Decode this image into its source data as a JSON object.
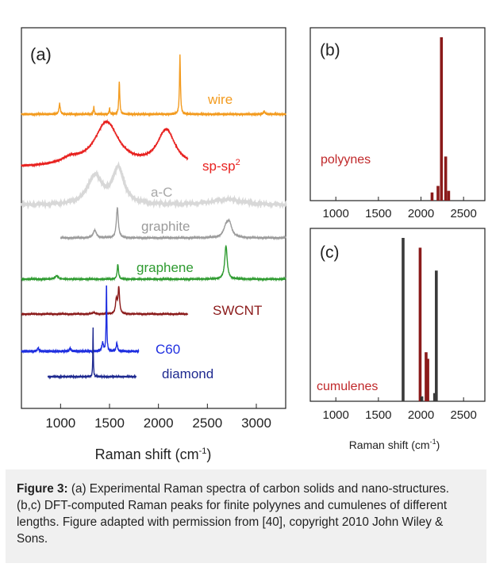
{
  "chart_data": [
    {
      "panel": "(a)",
      "type": "line",
      "xlabel": "Raman shift (cm",
      "xlabel_sup": "-1",
      "xlabel_end": ")",
      "xlim": [
        600,
        3300
      ],
      "xticks": [
        1000,
        1500,
        2000,
        2500,
        3000
      ],
      "series": [
        {
          "name": "wire",
          "color": "#f39b1f",
          "x_range": [
            600,
            3300
          ],
          "baseline": 0,
          "peaks": [
            [
              990,
              0.18,
              8
            ],
            [
              1340,
              0.12,
              5
            ],
            [
              1500,
              0.1,
              5
            ],
            [
              1600,
              0.55,
              6
            ],
            [
              2220,
              1.0,
              6
            ],
            [
              3080,
              0.05,
              10
            ]
          ]
        },
        {
          "name": "sp-sp",
          "name_sup": "2",
          "color": "#e8211f",
          "x_range": [
            600,
            2300
          ],
          "baseline": 0,
          "peaks": [
            [
              1470,
              0.74,
              150
            ],
            [
              2080,
              0.6,
              110
            ],
            [
              1100,
              0.1,
              120
            ]
          ]
        },
        {
          "name": "a-C",
          "color": "#d8d8d8",
          "x_range": [
            600,
            3300
          ],
          "baseline": 0.05,
          "peaks": [
            [
              1350,
              0.6,
              90
            ],
            [
              1590,
              0.75,
              70
            ],
            [
              2700,
              0.12,
              200
            ]
          ]
        },
        {
          "name": "graphite",
          "color": "#9b9b9b",
          "x_range": [
            1000,
            3300
          ],
          "baseline": 0,
          "peaks": [
            [
              1350,
              0.25,
              20
            ],
            [
              1580,
              1.0,
              12
            ],
            [
              2690,
              0.3,
              30
            ],
            [
              2725,
              0.45,
              30
            ]
          ]
        },
        {
          "name": "graphene",
          "color": "#2e9b30",
          "x_range": [
            600,
            3300
          ],
          "baseline": 0,
          "peaks": [
            [
              960,
              0.1,
              20
            ],
            [
              1585,
              0.45,
              8
            ],
            [
              2690,
              1.0,
              15
            ]
          ]
        },
        {
          "name": "SWCNT",
          "color": "#8b1a1a",
          "x_range": [
            600,
            2300
          ],
          "baseline": 0,
          "peaks": [
            [
              1570,
              0.55,
              10
            ],
            [
              1595,
              1.0,
              9
            ],
            [
              1340,
              0.05,
              20
            ]
          ]
        },
        {
          "name": "C60",
          "color": "#1f2fe0",
          "x_range": [
            600,
            1800
          ],
          "baseline": 0,
          "peaks": [
            [
              770,
              0.05,
              8
            ],
            [
              1100,
              0.04,
              10
            ],
            [
              1430,
              0.12,
              10
            ],
            [
              1469,
              1.0,
              4
            ],
            [
              1575,
              0.12,
              8
            ]
          ]
        },
        {
          "name": "diamond",
          "color": "#1f2a90",
          "x_range": [
            870,
            1770
          ],
          "baseline": 0,
          "peaks": [
            [
              1332,
              1.0,
              3
            ]
          ]
        }
      ]
    },
    {
      "panel": "(b)",
      "type": "bar",
      "label": "polyynes",
      "xlim": [
        700,
        2750
      ],
      "xticks": [
        1000,
        1500,
        2000,
        2500
      ],
      "color": "#8b1a1a",
      "x": [
        2130,
        2200,
        2240,
        2290,
        2325
      ],
      "values": [
        0.05,
        0.09,
        1.0,
        0.27,
        0.06
      ]
    },
    {
      "panel": "(c)",
      "type": "bar",
      "label": "cumulenes",
      "xlabel": "Raman shift (cm",
      "xlabel_sup": "-1",
      "xlabel_end": ")",
      "xlim": [
        700,
        2750
      ],
      "xticks": [
        1000,
        1500,
        2000,
        2500
      ],
      "color": "#3a3a3a",
      "x": [
        1790,
        1990,
        2010,
        2060,
        2080,
        2160,
        2180
      ],
      "values": [
        1.0,
        0.94,
        0.03,
        0.3,
        0.26,
        0.05,
        0.8
      ],
      "colors": [
        "#3a3a3a",
        "#8b1a1a",
        "#3a3a3a",
        "#8b1a1a",
        "#8b1a1a",
        "#3a3a3a",
        "#3a3a3a"
      ]
    }
  ],
  "caption": {
    "label": "Figure 3:",
    "text": " (a) Experimental Raman spectra of carbon solids and nano-structures. (b,c) DFT-computed Raman peaks for finite polyynes and cumulenes of different lengths. Figure adapted with permission from [40], copyright 2010 John Wiley & Sons."
  }
}
